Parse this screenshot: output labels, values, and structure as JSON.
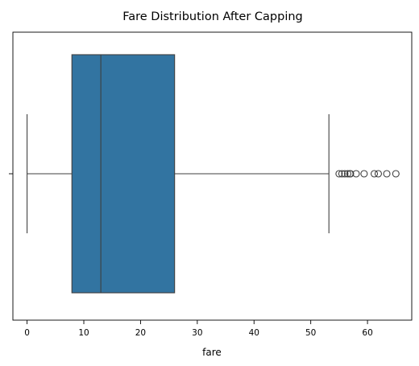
{
  "chart_data": {
    "type": "box",
    "title": "Fare Distribution After Capping",
    "xlabel": "fare",
    "ylabel": "",
    "xlim": [
      -2.5,
      67.8
    ],
    "x_ticks": [
      0,
      10,
      20,
      30,
      40,
      50,
      60
    ],
    "grid": false,
    "series": [
      {
        "min_whisker": 0,
        "q1": 7.9,
        "median": 13.0,
        "q3": 26.0,
        "max_whisker": 53.2,
        "outliers": [
          55.0,
          55.5,
          56.0,
          56.5,
          56.9,
          57.0,
          58.0,
          59.4,
          61.2,
          61.9,
          63.4,
          65.0
        ],
        "color": "#3274a1"
      }
    ]
  }
}
